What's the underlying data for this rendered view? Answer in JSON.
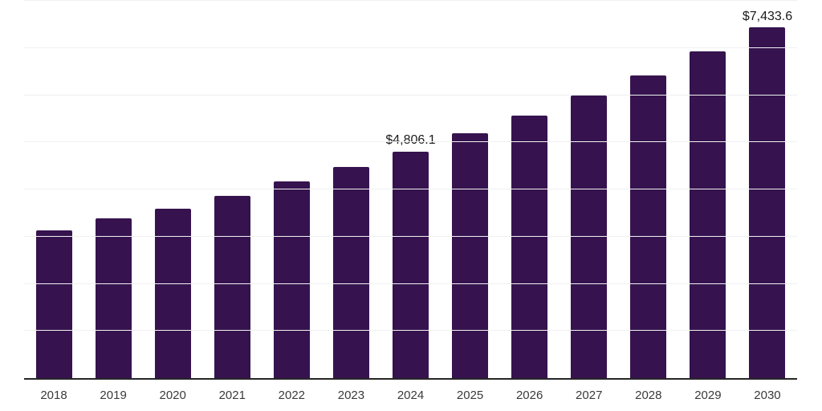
{
  "chart_data": {
    "type": "bar",
    "title": "",
    "categories": [
      "2018",
      "2019",
      "2020",
      "2021",
      "2022",
      "2023",
      "2024",
      "2025",
      "2026",
      "2027",
      "2028",
      "2029",
      "2030"
    ],
    "values": [
      3130,
      3380,
      3600,
      3870,
      4165,
      4480,
      4806.1,
      5190,
      5570,
      5985,
      6420,
      6920,
      7433.6
    ],
    "data_labels": [
      null,
      null,
      null,
      null,
      null,
      null,
      "$4,806.1",
      null,
      null,
      null,
      null,
      null,
      "$7,433.6"
    ],
    "ylim": [
      0,
      8000
    ],
    "gridline_step": 1000,
    "grid": "horizontal-only",
    "legend": "none",
    "y_tick_labels": "none",
    "colors": {
      "bar": "#36134f",
      "axis_line": "#262626",
      "gridline": "#f0f0f1",
      "data_label_text": "#1a1a1a",
      "tick_label_text": "#3a3a3a",
      "background": "#ffffff"
    }
  }
}
